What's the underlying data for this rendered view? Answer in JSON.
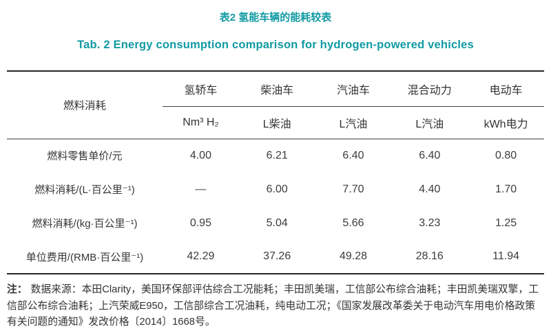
{
  "colors": {
    "accent_teal": "#109aa3",
    "text": "#333333",
    "rule": "#262626"
  },
  "caption": {
    "zh": "表2 氢能车辆的能耗较表",
    "en": "Tab. 2 Energy consumption comparison for hydrogen-powered vehicles"
  },
  "table": {
    "row_header_label": "燃料消耗",
    "columns": [
      {
        "vehicle": "氢轿车",
        "unit": "Nm³ H₂"
      },
      {
        "vehicle": "柴油车",
        "unit": "L柴油"
      },
      {
        "vehicle": "汽油车",
        "unit": "L汽油"
      },
      {
        "vehicle": "混合动力",
        "unit": "L汽油"
      },
      {
        "vehicle": "电动车",
        "unit": "kWh电力"
      }
    ],
    "rows": [
      {
        "label": "燃料零售单价/元",
        "values": [
          "4.00",
          "6.21",
          "6.40",
          "6.40",
          "0.80"
        ]
      },
      {
        "label": "燃料消耗/(L·百公里⁻¹)",
        "values": [
          "—",
          "6.00",
          "7.70",
          "4.40",
          "1.70"
        ]
      },
      {
        "label": "燃料消耗/(kg·百公里⁻¹)",
        "values": [
          "0.95",
          "5.04",
          "5.66",
          "3.23",
          "1.25"
        ]
      },
      {
        "label": "单位费用/(RMB·百公里⁻¹)",
        "values": [
          "42.29",
          "37.26",
          "49.28",
          "28.16",
          "11.94"
        ]
      }
    ]
  },
  "note": {
    "label": "注：",
    "text": "数据来源：本田Clarity，美国环保部评估综合工况能耗；丰田凯美瑞，工信部公布综合油耗；丰田凯美瑞双擎，工信部公布综合油耗；上汽荣威E950，工信部综合工况油耗，纯电动工况；《国家发展改革委关于电动汽车用电价格政策有关问题的通知》发改价格〔2014〕1668号。"
  }
}
